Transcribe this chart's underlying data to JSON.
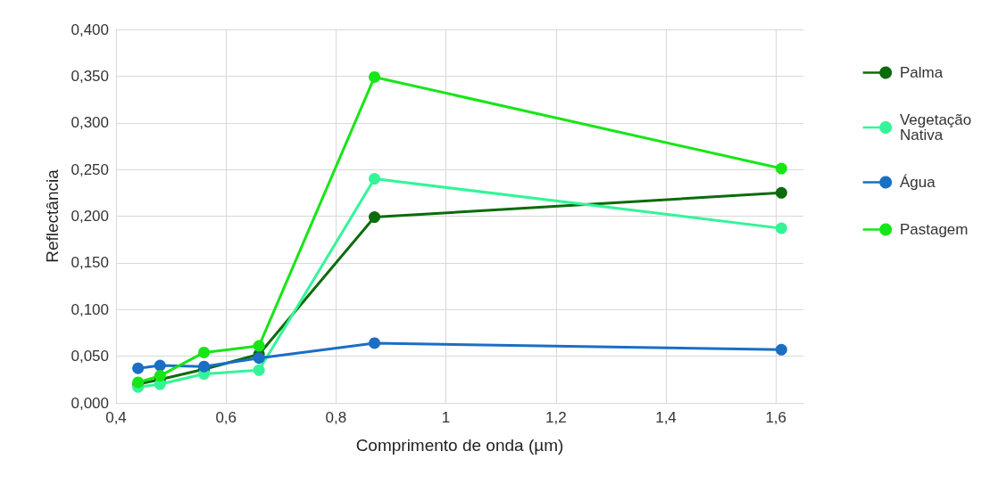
{
  "chart_data": {
    "type": "line",
    "xlabel": "Comprimento de onda (µm)",
    "ylabel": "Reflectância",
    "x": [
      0.44,
      0.48,
      0.56,
      0.66,
      0.87,
      1.61
    ],
    "series": [
      {
        "name": "Palma",
        "color": "#0c6b0c",
        "values": [
          0.02,
          0.025,
          0.036,
          0.052,
          0.199,
          0.225
        ]
      },
      {
        "name": "Vegetação Nativa",
        "color": "#33f598",
        "values": [
          0.017,
          0.02,
          0.031,
          0.035,
          0.24,
          0.187
        ]
      },
      {
        "name": "Água",
        "color": "#1a6fc4",
        "values": [
          0.037,
          0.04,
          0.039,
          0.048,
          0.064,
          0.057
        ]
      },
      {
        "name": "Pastagem",
        "color": "#16e616",
        "values": [
          0.022,
          0.029,
          0.054,
          0.061,
          0.349,
          0.251
        ]
      }
    ],
    "xlim": [
      0.4,
      1.65
    ],
    "xticks": [
      {
        "value": 0.4,
        "label": "0,4"
      },
      {
        "value": 0.6,
        "label": "0,6"
      },
      {
        "value": 0.8,
        "label": "0,8"
      },
      1,
      {
        "value": 1.2,
        "label": "1,2"
      },
      {
        "value": 1.4,
        "label": "1,4"
      },
      {
        "value": 1.6,
        "label": "1,6"
      }
    ],
    "ylim": [
      0,
      0.4
    ],
    "yticks": [
      {
        "value": 0,
        "label": "0,000"
      },
      {
        "value": 0.05,
        "label": "0,050"
      },
      {
        "value": 0.1,
        "label": "0,100"
      },
      {
        "value": 0.15,
        "label": "0,150"
      },
      {
        "value": 0.2,
        "label": "0,200"
      },
      {
        "value": 0.25,
        "label": "0,250"
      },
      {
        "value": 0.3,
        "label": "0,300"
      },
      {
        "value": 0.35,
        "label": "0,350"
      },
      {
        "value": 0.4,
        "label": "0,400"
      }
    ],
    "grid": true,
    "legend": "right",
    "marker": "circle",
    "line_style": "solid"
  }
}
